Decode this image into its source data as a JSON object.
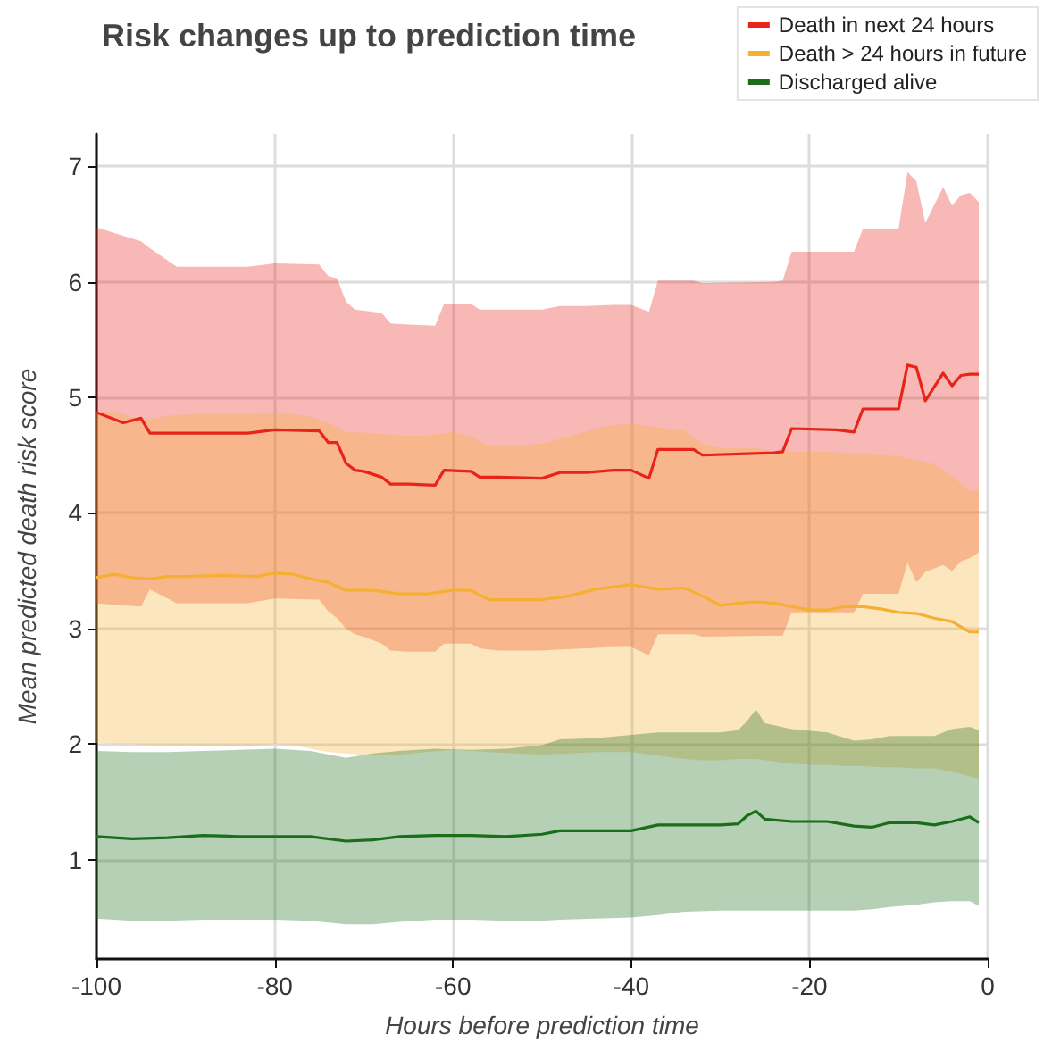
{
  "chart_data": {
    "type": "line",
    "title": "Risk changes up to prediction time",
    "xlabel": "Hours before prediction time",
    "ylabel": "Mean predicted death risk score",
    "xlim": [
      -100,
      0
    ],
    "xticks": [
      -100,
      -80,
      -60,
      -40,
      -20,
      0
    ],
    "ylim": [
      0.14,
      7.28
    ],
    "yticks": [
      1,
      2,
      3,
      4,
      5,
      6,
      7
    ],
    "grid": true,
    "legend": "top right",
    "marker": "none",
    "line_style": "solid",
    "series": [
      {
        "name": "Death in next 24 hours",
        "color": "#e8231a",
        "x": [
          -100,
          -97,
          -95,
          -94,
          -91,
          -88,
          -86,
          -83,
          -80,
          -75,
          -74,
          -73,
          -72,
          -71,
          -70,
          -68,
          -67,
          -65,
          -62,
          -61,
          -58,
          -57,
          -55,
          -50,
          -48,
          -45,
          -42,
          -40,
          -38,
          -37,
          -33,
          -32,
          -24,
          -23,
          -22,
          -17,
          -15,
          -14,
          -10,
          -9,
          -8,
          -7,
          -5,
          -4,
          -3,
          -2,
          -1
        ],
        "values": [
          4.87,
          4.78,
          4.82,
          4.69,
          4.69,
          4.69,
          4.69,
          4.69,
          4.72,
          4.71,
          4.61,
          4.61,
          4.43,
          4.37,
          4.36,
          4.31,
          4.25,
          4.25,
          4.24,
          4.37,
          4.36,
          4.31,
          4.31,
          4.3,
          4.35,
          4.35,
          4.37,
          4.37,
          4.3,
          4.55,
          4.55,
          4.5,
          4.52,
          4.53,
          4.73,
          4.72,
          4.7,
          4.9,
          4.9,
          5.28,
          5.26,
          4.97,
          5.21,
          5.1,
          5.19,
          5.2,
          5.2
        ],
        "upper": [
          6.47,
          6.4,
          6.35,
          6.29,
          6.13,
          6.13,
          6.13,
          6.13,
          6.16,
          6.15,
          6.05,
          6.03,
          5.83,
          5.76,
          5.75,
          5.73,
          5.64,
          5.63,
          5.62,
          5.81,
          5.81,
          5.76,
          5.76,
          5.76,
          5.79,
          5.79,
          5.8,
          5.8,
          5.74,
          6.01,
          6.01,
          5.99,
          6.0,
          6.01,
          6.26,
          6.26,
          6.26,
          6.46,
          6.46,
          6.95,
          6.87,
          6.51,
          6.82,
          6.66,
          6.75,
          6.77,
          6.69
        ],
        "lower": [
          3.22,
          3.2,
          3.19,
          3.34,
          3.22,
          3.22,
          3.22,
          3.22,
          3.26,
          3.25,
          3.15,
          3.09,
          3.0,
          2.95,
          2.93,
          2.87,
          2.81,
          2.8,
          2.8,
          2.87,
          2.87,
          2.83,
          2.81,
          2.81,
          2.82,
          2.83,
          2.84,
          2.84,
          2.77,
          2.95,
          2.95,
          2.93,
          2.94,
          2.94,
          3.14,
          3.14,
          3.14,
          3.3,
          3.3,
          3.57,
          3.4,
          3.49,
          3.55,
          3.5,
          3.58,
          3.61,
          3.66
        ]
      },
      {
        "name": "Death > 24 hours in future",
        "color": "#f5b031",
        "x": [
          -100,
          -98,
          -96,
          -94,
          -92,
          -90,
          -86,
          -82,
          -80,
          -78,
          -76,
          -74,
          -72,
          -69,
          -66,
          -63,
          -60,
          -58,
          -56,
          -53,
          -50,
          -47,
          -44,
          -42,
          -40,
          -37,
          -34,
          -32,
          -30,
          -28,
          -26,
          -24,
          -22,
          -20,
          -18,
          -16,
          -14,
          -12,
          -10,
          -8,
          -6,
          -4,
          -2,
          -1
        ],
        "values": [
          3.44,
          3.47,
          3.44,
          3.43,
          3.45,
          3.45,
          3.46,
          3.45,
          3.48,
          3.47,
          3.43,
          3.4,
          3.33,
          3.33,
          3.3,
          3.3,
          3.33,
          3.33,
          3.25,
          3.25,
          3.25,
          3.28,
          3.34,
          3.36,
          3.38,
          3.34,
          3.35,
          3.28,
          3.2,
          3.22,
          3.23,
          3.22,
          3.19,
          3.16,
          3.16,
          3.19,
          3.19,
          3.17,
          3.14,
          3.13,
          3.09,
          3.06,
          2.97,
          2.97
        ],
        "upper": [
          4.87,
          4.88,
          4.83,
          4.81,
          4.84,
          4.85,
          4.86,
          4.86,
          4.87,
          4.86,
          4.83,
          4.78,
          4.7,
          4.69,
          4.67,
          4.67,
          4.7,
          4.66,
          4.58,
          4.58,
          4.6,
          4.66,
          4.73,
          4.76,
          4.77,
          4.74,
          4.71,
          4.6,
          4.56,
          4.56,
          4.56,
          4.53,
          4.53,
          4.53,
          4.53,
          4.52,
          4.51,
          4.5,
          4.49,
          4.46,
          4.42,
          4.32,
          4.19,
          4.2
        ],
        "lower": [
          2.01,
          2.0,
          2.0,
          1.99,
          1.99,
          1.99,
          1.98,
          1.99,
          2.0,
          1.99,
          1.96,
          1.93,
          1.92,
          1.9,
          1.91,
          1.93,
          1.95,
          1.94,
          1.93,
          1.92,
          1.91,
          1.92,
          1.93,
          1.93,
          1.93,
          1.9,
          1.87,
          1.86,
          1.86,
          1.87,
          1.87,
          1.85,
          1.83,
          1.82,
          1.82,
          1.81,
          1.81,
          1.8,
          1.8,
          1.79,
          1.79,
          1.76,
          1.72,
          1.7
        ]
      },
      {
        "name": "Discharged alive",
        "color": "#1a6e1a",
        "x": [
          -100,
          -96,
          -92,
          -88,
          -84,
          -80,
          -76,
          -72,
          -69,
          -66,
          -62,
          -58,
          -54,
          -50,
          -48,
          -44,
          -40,
          -37,
          -34,
          -30,
          -28,
          -27,
          -26,
          -25,
          -22,
          -18,
          -15,
          -13,
          -11,
          -8,
          -6,
          -4,
          -2,
          -1
        ],
        "values": [
          1.2,
          1.18,
          1.19,
          1.21,
          1.2,
          1.2,
          1.2,
          1.16,
          1.17,
          1.2,
          1.21,
          1.21,
          1.2,
          1.22,
          1.25,
          1.25,
          1.25,
          1.3,
          1.3,
          1.3,
          1.31,
          1.38,
          1.42,
          1.35,
          1.33,
          1.33,
          1.29,
          1.28,
          1.32,
          1.32,
          1.3,
          1.33,
          1.37,
          1.32
        ],
        "upper": [
          1.94,
          1.93,
          1.93,
          1.94,
          1.95,
          1.96,
          1.94,
          1.88,
          1.92,
          1.94,
          1.96,
          1.95,
          1.96,
          1.99,
          2.04,
          2.05,
          2.08,
          2.1,
          2.1,
          2.1,
          2.12,
          2.2,
          2.3,
          2.18,
          2.13,
          2.1,
          2.03,
          2.04,
          2.07,
          2.07,
          2.07,
          2.13,
          2.15,
          2.12
        ],
        "lower": [
          0.49,
          0.47,
          0.47,
          0.48,
          0.48,
          0.48,
          0.47,
          0.44,
          0.44,
          0.46,
          0.48,
          0.48,
          0.47,
          0.47,
          0.48,
          0.49,
          0.5,
          0.52,
          0.55,
          0.56,
          0.56,
          0.56,
          0.56,
          0.56,
          0.56,
          0.56,
          0.56,
          0.57,
          0.59,
          0.61,
          0.63,
          0.64,
          0.64,
          0.6
        ]
      }
    ]
  }
}
